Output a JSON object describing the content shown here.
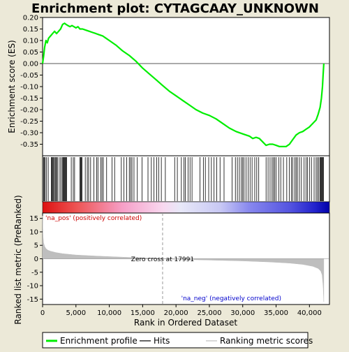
{
  "chart_data": {
    "type": "line",
    "title": "Enrichment plot: CYTAGCAAY_UNKNOWN",
    "es_panel": {
      "ylabel": "Enrichment score (ES)",
      "ylim": [
        -0.4,
        0.2
      ],
      "yticks": [
        "0.20",
        "0.15",
        "0.10",
        "0.05",
        "0.00",
        "-0.05",
        "-0.10",
        "-0.15",
        "-0.20",
        "-0.25",
        "-0.30",
        "-0.35"
      ],
      "ytick_values": [
        0.2,
        0.15,
        0.1,
        0.05,
        0.0,
        -0.05,
        -0.1,
        -0.15,
        -0.2,
        -0.25,
        -0.3,
        -0.35
      ],
      "series": [
        {
          "name": "Enrichment profile",
          "color": "#00ee00",
          "x": [
            0,
            150,
            300,
            500,
            700,
            900,
            1200,
            1500,
            1800,
            2100,
            2400,
            2700,
            3000,
            3300,
            3500,
            3800,
            4100,
            4400,
            4700,
            5000,
            5300,
            5600,
            6000,
            6500,
            7000,
            7500,
            8000,
            8500,
            9000,
            9500,
            10000,
            11000,
            12000,
            13000,
            14000,
            15000,
            16000,
            17000,
            18000,
            19000,
            20000,
            21000,
            22000,
            23000,
            24000,
            25000,
            26000,
            27000,
            28000,
            29000,
            30000,
            31000,
            31500,
            32000,
            32500,
            33000,
            33500,
            34000,
            34500,
            35000,
            35500,
            36000,
            36500,
            37000,
            37500,
            38000,
            38500,
            39000,
            39500,
            40000,
            40500,
            41000,
            41300,
            41600,
            41800,
            41950,
            42050,
            42150
          ],
          "y": [
            0.0,
            0.03,
            0.07,
            0.1,
            0.09,
            0.11,
            0.12,
            0.13,
            0.14,
            0.13,
            0.14,
            0.15,
            0.17,
            0.175,
            0.17,
            0.165,
            0.16,
            0.165,
            0.16,
            0.155,
            0.16,
            0.15,
            0.15,
            0.145,
            0.14,
            0.135,
            0.13,
            0.125,
            0.12,
            0.11,
            0.1,
            0.08,
            0.055,
            0.035,
            0.01,
            -0.02,
            -0.045,
            -0.07,
            -0.095,
            -0.12,
            -0.14,
            -0.16,
            -0.18,
            -0.2,
            -0.215,
            -0.225,
            -0.24,
            -0.26,
            -0.28,
            -0.295,
            -0.305,
            -0.315,
            -0.325,
            -0.32,
            -0.325,
            -0.34,
            -0.355,
            -0.35,
            -0.35,
            -0.355,
            -0.36,
            -0.36,
            -0.36,
            -0.35,
            -0.33,
            -0.31,
            -0.3,
            -0.295,
            -0.285,
            -0.275,
            -0.26,
            -0.245,
            -0.22,
            -0.19,
            -0.15,
            -0.1,
            -0.05,
            0.0
          ]
        }
      ]
    },
    "hits_panel": {
      "color": "#000000",
      "hit_positions": [
        150,
        260,
        400,
        600,
        850,
        1300,
        1400,
        1500,
        1650,
        1750,
        1900,
        2000,
        2150,
        2300,
        2600,
        2800,
        3000,
        3100,
        3200,
        3300,
        3400,
        3500,
        3600,
        4300,
        4600,
        4800,
        5600,
        5700,
        5800,
        5900,
        6400,
        6700,
        6900,
        7200,
        7700,
        8100,
        8300,
        8700,
        8900,
        9100,
        9600,
        10400,
        10800,
        11800,
        12200,
        12600,
        13000,
        13200,
        13400,
        13700,
        14200,
        14900,
        15800,
        16300,
        16700,
        17100,
        17400,
        17800,
        18400,
        19800,
        20200,
        20800,
        21200,
        21400,
        21800,
        22100,
        22400,
        23600,
        24100,
        24400,
        24900,
        25300,
        25700,
        26100,
        26600,
        27200,
        28400,
        28900,
        29200,
        29500,
        29800,
        30000,
        30200,
        30500,
        30800,
        31100,
        31400,
        31800,
        32100,
        32400,
        33500,
        33800,
        34100,
        34400,
        34600,
        34800,
        35000,
        35400,
        35700,
        36100,
        36600,
        37000,
        37300,
        37500,
        37800,
        38000,
        38200,
        38500,
        38800,
        39200,
        39500,
        39700,
        40000,
        40300,
        40700,
        41000,
        41200,
        41400,
        41600,
        41700,
        41800,
        41900,
        42000,
        42100
      ]
    },
    "rank_bar": {
      "left_label": "'na_pos' (positively correlated)",
      "right_label": "'na_neg' (negatively correlated)",
      "left_color": "#cc0000",
      "right_color": "#0000cc"
    },
    "metric_panel": {
      "ylabel": "Ranked list metric (PreRanked)",
      "ylim": [
        -17,
        17
      ],
      "yticks": [
        "15",
        "10",
        "5",
        "0",
        "-5",
        "-10",
        "-15"
      ],
      "ytick_values": [
        15,
        10,
        5,
        0,
        -5,
        -10,
        -15
      ],
      "fill_color": "#bebebe",
      "zero_cross_label": "Zero cross at 17991",
      "zero_cross": 17991,
      "x": [
        0,
        30,
        80,
        150,
        300,
        500,
        800,
        1200,
        2000,
        3000,
        5000,
        8000,
        12000,
        16000,
        17991,
        20000,
        25000,
        30000,
        34000,
        37000,
        39000,
        40500,
        41300,
        41700,
        41900,
        42050,
        42150
      ],
      "y": [
        16,
        11,
        8,
        6,
        4.6,
        3.8,
        3.2,
        2.8,
        2.3,
        1.9,
        1.4,
        1.0,
        0.6,
        0.25,
        0,
        -0.2,
        -0.5,
        -0.8,
        -1.2,
        -1.6,
        -2.1,
        -2.8,
        -3.6,
        -4.6,
        -6,
        -10,
        -16
      ]
    },
    "xaxis": {
      "xlabel": "Rank in Ordered Dataset",
      "xlim": [
        0,
        43000
      ],
      "xticks": [
        "0",
        "5,000",
        "10,000",
        "15,000",
        "20,000",
        "25,000",
        "30,000",
        "35,000",
        "40,000"
      ],
      "xtick_values": [
        0,
        5000,
        10000,
        15000,
        20000,
        25000,
        30000,
        35000,
        40000
      ]
    },
    "legend": {
      "placement": "bottom",
      "items": [
        {
          "label": "Enrichment profile",
          "color": "#00ee00",
          "kind": "thick-line"
        },
        {
          "label": "Hits",
          "color": "#000000",
          "kind": "line"
        },
        {
          "label": "Ranking metric scores",
          "color": "#bebebe",
          "kind": "line"
        }
      ]
    }
  }
}
